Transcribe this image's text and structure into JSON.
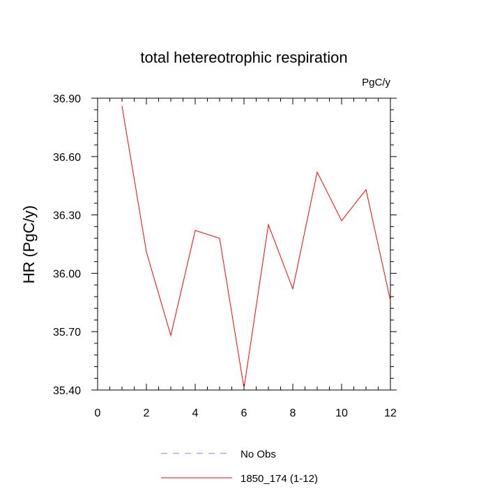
{
  "chart_data": {
    "type": "line",
    "title": "total hetereotrophic respiration",
    "units_label": "PgC/y",
    "ylabel": "HR  (PgC/y)",
    "xlabel": "",
    "xlim": [
      0,
      12
    ],
    "ylim": [
      35.4,
      36.9
    ],
    "x_ticks": [
      0,
      2,
      4,
      6,
      8,
      10,
      12
    ],
    "x_tick_labels": [
      "0",
      "2",
      "4",
      "6",
      "8",
      "10",
      "12"
    ],
    "y_ticks": [
      35.4,
      35.7,
      36.0,
      36.3,
      36.6,
      36.9
    ],
    "y_tick_labels": [
      "35.40",
      "35.70",
      "36.00",
      "36.30",
      "36.60",
      "36.90"
    ],
    "grid": false,
    "legend_position": "bottom",
    "series": [
      {
        "name": "1850_174 (1-12)",
        "color": "#ff0000",
        "style": "solid",
        "x": [
          1,
          2,
          3,
          4,
          5,
          6,
          7,
          8,
          9,
          10,
          11,
          12
        ],
        "y": [
          36.86,
          36.11,
          35.68,
          36.22,
          36.18,
          35.41,
          36.25,
          35.92,
          36.52,
          36.27,
          36.43,
          35.86
        ]
      }
    ],
    "legend": [
      {
        "label": "No Obs",
        "color": "#8080ff",
        "style": "dashed"
      },
      {
        "label": "1850_174 (1-12)",
        "color": "#ff0000",
        "style": "solid"
      }
    ]
  }
}
